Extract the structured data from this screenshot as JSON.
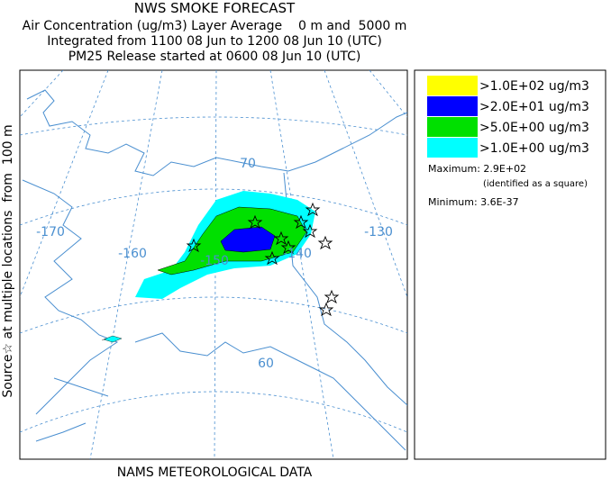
{
  "header": {
    "title": "NWS SMOKE FORECAST",
    "lines": [
      "Air Concentration (ug/m3) Layer Average    0 m and  5000 m",
      "Integrated from 1100 08 Jun to 1200 08 Jun 10 (UTC)",
      "PM25 Release started at 0600 08 Jun 10 (UTC)"
    ]
  },
  "map": {
    "source_note": "Source☆ at multiple locations  from  100 m",
    "graticule_labels": [
      "70",
      "-170",
      "-160",
      "-150",
      "-140",
      "-130",
      "60"
    ]
  },
  "legend": {
    "entries": [
      {
        "label": ">1.0E+02 ug/m3",
        "color": "#ffff00"
      },
      {
        "label": ">2.0E+01 ug/m3",
        "color": "#0000ff"
      },
      {
        "label": ">5.0E+00 ug/m3",
        "color": "#00e000"
      },
      {
        "label": ">1.0E+00 ug/m3",
        "color": "#00ffff"
      }
    ],
    "maximum": "Maximum: 2.9E+02",
    "maximum_note": "(identified as a square)",
    "minimum": "Minimum: 3.6E-37"
  },
  "footer": {
    "text": "NAMS METEOROLOGICAL DATA"
  }
}
